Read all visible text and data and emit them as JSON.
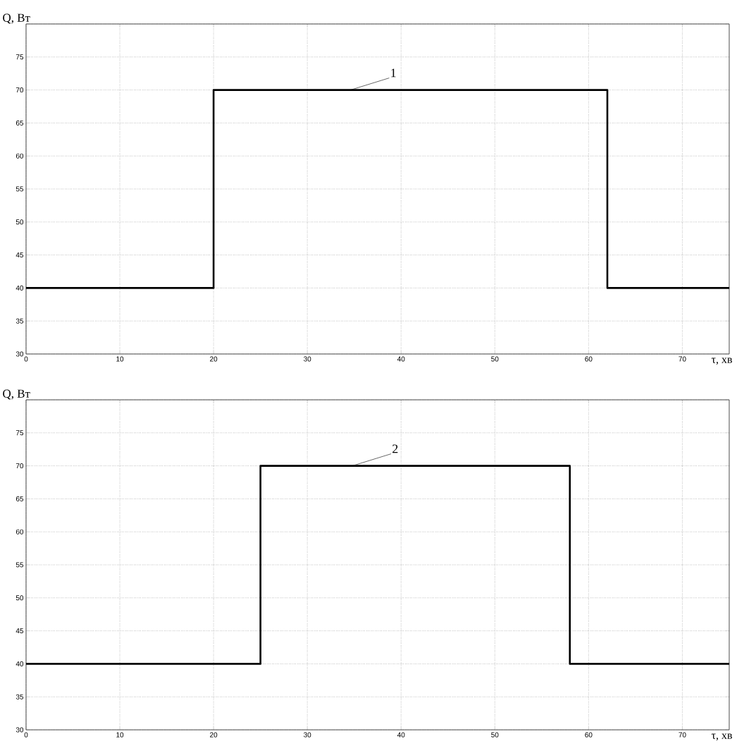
{
  "chart_data": [
    {
      "type": "step",
      "xlabel": "τ, хв",
      "ylabel": "Q, Вт",
      "x": [
        0,
        20,
        62,
        75
      ],
      "values": [
        40,
        70,
        40,
        40
      ],
      "color": "#000000",
      "xlim": [
        0,
        75
      ],
      "ylim": [
        30,
        80
      ],
      "xticks": [
        0,
        10,
        20,
        30,
        40,
        50,
        60,
        70
      ],
      "yticks": [
        30,
        35,
        40,
        45,
        50,
        55,
        60,
        65,
        70,
        75,
        {
          "value": 80,
          "label": null
        }
      ],
      "grid": true,
      "annotations": [
        {
          "text": "1",
          "x": 34.6,
          "y": 70
        }
      ]
    },
    {
      "type": "step",
      "xlabel": "τ, хв",
      "ylabel": "Q, Вт",
      "x": [
        0,
        25,
        58,
        75
      ],
      "values": [
        40,
        70,
        40,
        40
      ],
      "color": "#000000",
      "xlim": [
        0,
        75
      ],
      "ylim": [
        30,
        80
      ],
      "xticks": [
        0,
        10,
        20,
        30,
        40,
        50,
        60,
        70
      ],
      "yticks": [
        30,
        35,
        40,
        45,
        50,
        55,
        60,
        65,
        70,
        75,
        {
          "value": 80,
          "label": null
        }
      ],
      "grid": true,
      "annotations": [
        {
          "text": "2",
          "x": 34.8,
          "y": 70
        }
      ]
    }
  ]
}
